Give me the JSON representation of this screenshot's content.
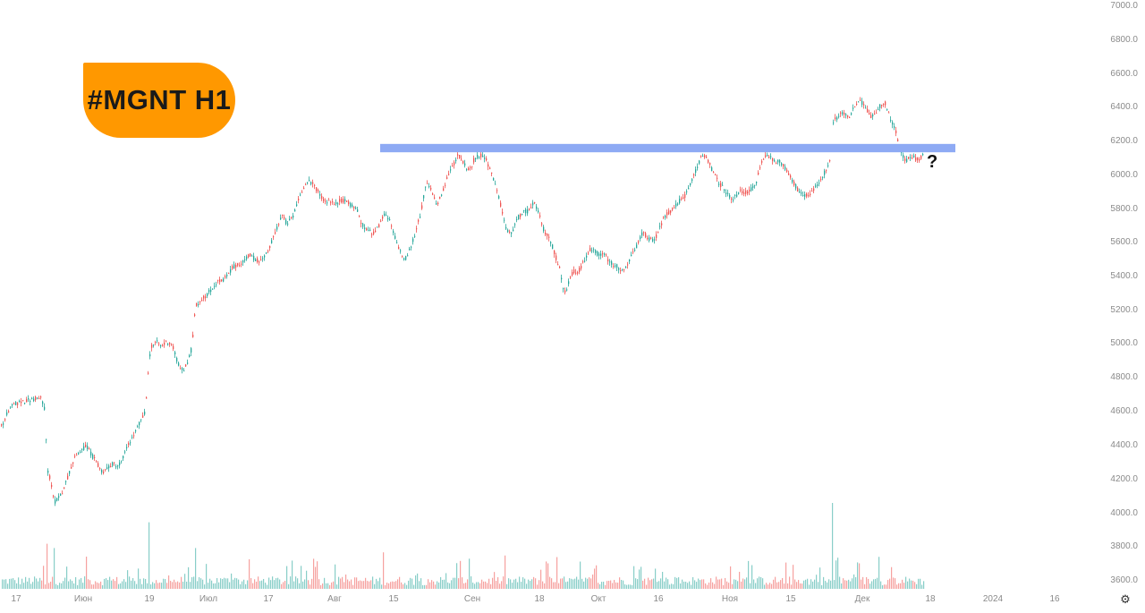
{
  "badge": {
    "text": "#MGNT H1",
    "color": "#ff9800"
  },
  "annotation": {
    "text": "?"
  },
  "settings_icon": "gear-icon",
  "chart_data": {
    "type": "candlestick",
    "title": "",
    "y_axis": {
      "ticks": [
        "7000.0",
        "6800.0",
        "6600.0",
        "6400.0",
        "6200.0",
        "6000.0",
        "5800.0",
        "5600.0",
        "5400.0",
        "5200.0",
        "5000.0",
        "4800.0",
        "4600.0",
        "4400.0",
        "4200.0",
        "4000.0",
        "3800.0",
        "3600.0"
      ],
      "range": [
        3560,
        7000
      ]
    },
    "x_axis": {
      "ticks": [
        "17",
        "Июн",
        "19",
        "Июл",
        "17",
        "Авг",
        "15",
        "Сен",
        "18",
        "Окт",
        "16",
        "Ноя",
        "15",
        "Дек",
        "18",
        "2024",
        "16"
      ]
    },
    "price_path": [
      [
        0,
        4470
      ],
      [
        4,
        4500
      ],
      [
        8,
        4560
      ],
      [
        14,
        4600
      ],
      [
        22,
        4620
      ],
      [
        30,
        4630
      ],
      [
        38,
        4640
      ],
      [
        46,
        4640
      ],
      [
        50,
        4570
      ],
      [
        52,
        4220
      ],
      [
        56,
        4150
      ],
      [
        60,
        4020
      ],
      [
        66,
        4050
      ],
      [
        72,
        4120
      ],
      [
        78,
        4220
      ],
      [
        84,
        4300
      ],
      [
        90,
        4330
      ],
      [
        96,
        4360
      ],
      [
        102,
        4300
      ],
      [
        108,
        4250
      ],
      [
        114,
        4200
      ],
      [
        120,
        4230
      ],
      [
        126,
        4250
      ],
      [
        132,
        4240
      ],
      [
        138,
        4300
      ],
      [
        144,
        4380
      ],
      [
        150,
        4430
      ],
      [
        156,
        4500
      ],
      [
        162,
        4560
      ],
      [
        165,
        4800
      ],
      [
        168,
        4950
      ],
      [
        174,
        4980
      ],
      [
        180,
        4950
      ],
      [
        186,
        4980
      ],
      [
        192,
        4960
      ],
      [
        198,
        4860
      ],
      [
        204,
        4800
      ],
      [
        210,
        4870
      ],
      [
        214,
        4950
      ],
      [
        218,
        5200
      ],
      [
        224,
        5230
      ],
      [
        230,
        5260
      ],
      [
        236,
        5300
      ],
      [
        242,
        5340
      ],
      [
        248,
        5340
      ],
      [
        254,
        5380
      ],
      [
        260,
        5430
      ],
      [
        266,
        5440
      ],
      [
        272,
        5470
      ],
      [
        278,
        5500
      ],
      [
        284,
        5480
      ],
      [
        290,
        5460
      ],
      [
        296,
        5490
      ],
      [
        302,
        5560
      ],
      [
        308,
        5650
      ],
      [
        314,
        5740
      ],
      [
        320,
        5690
      ],
      [
        326,
        5720
      ],
      [
        332,
        5820
      ],
      [
        338,
        5900
      ],
      [
        344,
        5940
      ],
      [
        350,
        5920
      ],
      [
        356,
        5870
      ],
      [
        362,
        5820
      ],
      [
        368,
        5830
      ],
      [
        374,
        5800
      ],
      [
        380,
        5830
      ],
      [
        386,
        5820
      ],
      [
        392,
        5800
      ],
      [
        398,
        5780
      ],
      [
        404,
        5680
      ],
      [
        410,
        5650
      ],
      [
        416,
        5630
      ],
      [
        422,
        5660
      ],
      [
        428,
        5740
      ],
      [
        434,
        5720
      ],
      [
        440,
        5620
      ],
      [
        446,
        5530
      ],
      [
        452,
        5470
      ],
      [
        458,
        5540
      ],
      [
        464,
        5640
      ],
      [
        470,
        5760
      ],
      [
        476,
        5930
      ],
      [
        482,
        5880
      ],
      [
        488,
        5800
      ],
      [
        494,
        5870
      ],
      [
        500,
        5970
      ],
      [
        506,
        6040
      ],
      [
        512,
        6100
      ],
      [
        518,
        6050
      ],
      [
        524,
        6000
      ],
      [
        530,
        6080
      ],
      [
        536,
        6100
      ],
      [
        542,
        6080
      ],
      [
        548,
        6000
      ],
      [
        554,
        5900
      ],
      [
        560,
        5780
      ],
      [
        566,
        5640
      ],
      [
        572,
        5640
      ],
      [
        578,
        5720
      ],
      [
        584,
        5760
      ],
      [
        590,
        5760
      ],
      [
        596,
        5820
      ],
      [
        602,
        5740
      ],
      [
        608,
        5640
      ],
      [
        614,
        5600
      ],
      [
        620,
        5500
      ],
      [
        626,
        5400
      ],
      [
        630,
        5260
      ],
      [
        634,
        5320
      ],
      [
        640,
        5400
      ],
      [
        646,
        5400
      ],
      [
        652,
        5460
      ],
      [
        658,
        5530
      ],
      [
        664,
        5520
      ],
      [
        670,
        5500
      ],
      [
        676,
        5500
      ],
      [
        682,
        5450
      ],
      [
        688,
        5440
      ],
      [
        694,
        5400
      ],
      [
        700,
        5440
      ],
      [
        706,
        5500
      ],
      [
        712,
        5560
      ],
      [
        718,
        5640
      ],
      [
        724,
        5600
      ],
      [
        730,
        5580
      ],
      [
        736,
        5650
      ],
      [
        742,
        5730
      ],
      [
        748,
        5760
      ],
      [
        754,
        5790
      ],
      [
        760,
        5830
      ],
      [
        766,
        5860
      ],
      [
        772,
        5930
      ],
      [
        778,
        6020
      ],
      [
        784,
        6100
      ],
      [
        790,
        6080
      ],
      [
        796,
        6000
      ],
      [
        802,
        5940
      ],
      [
        808,
        5900
      ],
      [
        814,
        5850
      ],
      [
        820,
        5840
      ],
      [
        826,
        5880
      ],
      [
        832,
        5870
      ],
      [
        838,
        5890
      ],
      [
        844,
        5920
      ],
      [
        850,
        6040
      ],
      [
        856,
        6100
      ],
      [
        862,
        6080
      ],
      [
        868,
        6060
      ],
      [
        874,
        6050
      ],
      [
        880,
        6000
      ],
      [
        886,
        5940
      ],
      [
        892,
        5880
      ],
      [
        898,
        5850
      ],
      [
        904,
        5860
      ],
      [
        910,
        5900
      ],
      [
        916,
        5950
      ],
      [
        922,
        6000
      ],
      [
        928,
        6080
      ],
      [
        931,
        6300
      ],
      [
        936,
        6330
      ],
      [
        942,
        6350
      ],
      [
        948,
        6320
      ],
      [
        954,
        6380
      ],
      [
        960,
        6420
      ],
      [
        966,
        6400
      ],
      [
        972,
        6330
      ],
      [
        978,
        6350
      ],
      [
        984,
        6400
      ],
      [
        988,
        6420
      ],
      [
        992,
        6360
      ],
      [
        996,
        6300
      ],
      [
        1000,
        6260
      ],
      [
        1004,
        6170
      ],
      [
        1008,
        6100
      ],
      [
        1012,
        6060
      ],
      [
        1016,
        6080
      ],
      [
        1020,
        6090
      ],
      [
        1024,
        6070
      ],
      [
        1028,
        6080
      ],
      [
        1032,
        6100
      ]
    ],
    "volume_spikes": [
      [
        52,
        420
      ],
      [
        60,
        380
      ],
      [
        96,
        300
      ],
      [
        166,
        620
      ],
      [
        218,
        380
      ],
      [
        350,
        280
      ],
      [
        428,
        340
      ],
      [
        514,
        260
      ],
      [
        714,
        180
      ],
      [
        930,
        800
      ],
      [
        936,
        290
      ]
    ],
    "annotation_level": {
      "from": 425,
      "to": 1068,
      "y_low": 6115,
      "y_high": 6165,
      "color": "#8eaaf4"
    },
    "colors": {
      "up": "#26a69a",
      "down": "#ef5350",
      "axis_text": "#8a8a8a"
    }
  }
}
